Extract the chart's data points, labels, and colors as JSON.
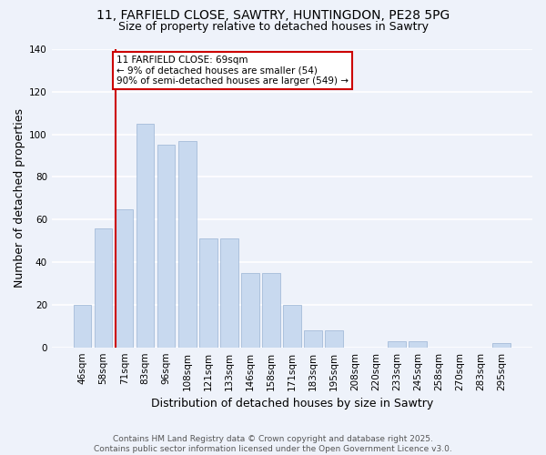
{
  "title_line1": "11, FARFIELD CLOSE, SAWTRY, HUNTINGDON, PE28 5PG",
  "title_line2": "Size of property relative to detached houses in Sawtry",
  "xlabel": "Distribution of detached houses by size in Sawtry",
  "ylabel": "Number of detached properties",
  "footer_line1": "Contains HM Land Registry data © Crown copyright and database right 2025.",
  "footer_line2": "Contains public sector information licensed under the Open Government Licence v3.0.",
  "categories": [
    "46sqm",
    "58sqm",
    "71sqm",
    "83sqm",
    "96sqm",
    "108sqm",
    "121sqm",
    "133sqm",
    "146sqm",
    "158sqm",
    "171sqm",
    "183sqm",
    "195sqm",
    "208sqm",
    "220sqm",
    "233sqm",
    "245sqm",
    "258sqm",
    "270sqm",
    "283sqm",
    "295sqm"
  ],
  "values": [
    20,
    56,
    65,
    105,
    95,
    97,
    51,
    51,
    35,
    35,
    20,
    8,
    8,
    0,
    0,
    3,
    3,
    0,
    0,
    0,
    2
  ],
  "bar_color": "#c8d9ef",
  "bar_edge_color": "#9ab4d4",
  "vline_color": "#cc0000",
  "annotation_text": "11 FARFIELD CLOSE: 69sqm\n← 9% of detached houses are smaller (54)\n90% of semi-detached houses are larger (549) →",
  "annotation_box_color": "#ffffff",
  "annotation_box_edge_color": "#cc0000",
  "ylim": [
    0,
    140
  ],
  "yticks": [
    0,
    20,
    40,
    60,
    80,
    100,
    120,
    140
  ],
  "background_color": "#eef2fa",
  "grid_color": "#ffffff",
  "title_fontsize": 10,
  "subtitle_fontsize": 9,
  "axis_label_fontsize": 9,
  "tick_fontsize": 7.5,
  "annotation_fontsize": 7.5,
  "footer_fontsize": 6.5
}
